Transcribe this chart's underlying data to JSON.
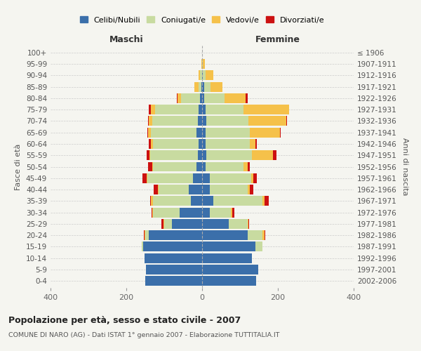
{
  "age_groups": [
    "0-4",
    "5-9",
    "10-14",
    "15-19",
    "20-24",
    "25-29",
    "30-34",
    "35-39",
    "40-44",
    "45-49",
    "50-54",
    "55-59",
    "60-64",
    "65-69",
    "70-74",
    "75-79",
    "80-84",
    "85-89",
    "90-94",
    "95-99",
    "100+"
  ],
  "birth_years": [
    "2002-2006",
    "1997-2001",
    "1992-1996",
    "1987-1991",
    "1982-1986",
    "1977-1981",
    "1972-1976",
    "1967-1971",
    "1962-1966",
    "1957-1961",
    "1952-1956",
    "1947-1951",
    "1942-1946",
    "1937-1941",
    "1932-1936",
    "1927-1931",
    "1922-1926",
    "1917-1921",
    "1912-1916",
    "1907-1911",
    "≤ 1906"
  ],
  "maschi": {
    "celibi": [
      150,
      148,
      152,
      155,
      140,
      80,
      60,
      30,
      35,
      25,
      15,
      12,
      10,
      15,
      12,
      10,
      5,
      2,
      0,
      0,
      0
    ],
    "coniugati": [
      0,
      0,
      0,
      5,
      10,
      20,
      70,
      100,
      80,
      120,
      115,
      125,
      120,
      120,
      120,
      115,
      50,
      8,
      5,
      0,
      0
    ],
    "vedovi": [
      0,
      0,
      0,
      0,
      2,
      2,
      2,
      5,
      2,
      2,
      2,
      2,
      5,
      8,
      8,
      10,
      10,
      10,
      5,
      2,
      0
    ],
    "divorziati": [
      0,
      0,
      0,
      0,
      2,
      5,
      2,
      2,
      10,
      10,
      10,
      8,
      5,
      2,
      2,
      5,
      2,
      0,
      0,
      0,
      0
    ]
  },
  "femmine": {
    "nubili": [
      143,
      148,
      132,
      140,
      120,
      70,
      20,
      30,
      20,
      20,
      10,
      12,
      10,
      10,
      12,
      10,
      5,
      5,
      2,
      0,
      0
    ],
    "coniugate": [
      0,
      0,
      0,
      20,
      40,
      50,
      55,
      130,
      100,
      110,
      100,
      120,
      115,
      115,
      110,
      100,
      55,
      18,
      8,
      2,
      0
    ],
    "vedove": [
      0,
      0,
      0,
      0,
      5,
      2,
      5,
      5,
      5,
      5,
      10,
      55,
      15,
      80,
      100,
      120,
      55,
      30,
      20,
      5,
      0
    ],
    "divorziate": [
      0,
      0,
      0,
      0,
      2,
      2,
      5,
      10,
      10,
      10,
      5,
      10,
      5,
      2,
      2,
      0,
      5,
      0,
      0,
      0,
      0
    ]
  },
  "colors": {
    "celibi": "#3b6faa",
    "coniugati": "#c8dba0",
    "vedovi": "#f5c14a",
    "divorziati": "#cc1111"
  },
  "title": "Popolazione per età, sesso e stato civile - 2007",
  "subtitle": "COMUNE DI NARO (AG) - Dati ISTAT 1° gennaio 2007 - Elaborazione TUTTITALIA.IT",
  "xlabel_left": "Maschi",
  "xlabel_right": "Femmine",
  "ylabel_left": "Fasce di età",
  "ylabel_right": "Anni di nascita",
  "xlim": 400,
  "bg_color": "#f5f5f0",
  "plot_bg": "#f5f5f0",
  "legend_labels": [
    "Celibi/Nubili",
    "Coniugati/e",
    "Vedovi/e",
    "Divorziati/e"
  ]
}
